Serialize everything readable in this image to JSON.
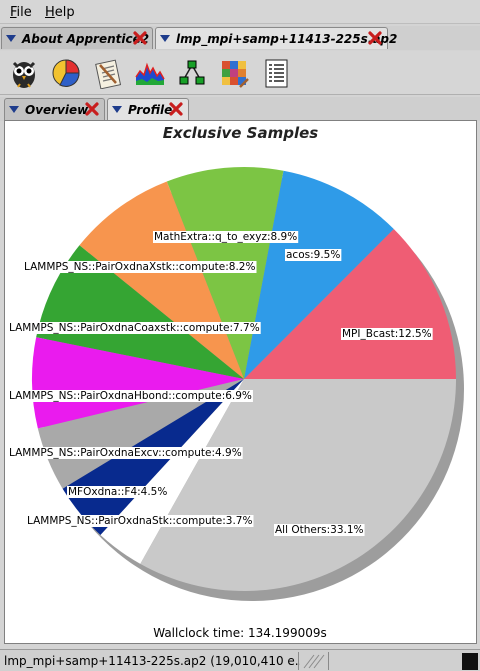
{
  "menu": {
    "file": "File",
    "file_mnemonic": "F",
    "file_rest": "ile",
    "help": "Help",
    "help_mnemonic": "H",
    "help_rest": "elp"
  },
  "app_tabs": [
    {
      "label": "About Apprentice2"
    },
    {
      "label": "lmp_mpi+samp+11413-225s.ap2"
    }
  ],
  "toolbar": {
    "icons": [
      "owl-icon",
      "pie-chart-icon",
      "clipboard-icon",
      "histogram-icon",
      "tree-icon",
      "heatmap-icon",
      "report-icon"
    ]
  },
  "view_tabs": [
    {
      "label": "Overview"
    },
    {
      "label": "Profile"
    }
  ],
  "chart_data": {
    "type": "pie",
    "title": "Exclusive Samples",
    "slices": [
      {
        "label": "MPI_Bcast:12.5%",
        "value": 12.5,
        "color": "#ef5d74"
      },
      {
        "label": "acos:9.5%",
        "value": 9.5,
        "color": "#2f9be8"
      },
      {
        "label": "MathExtra::q_to_exyz:8.9%",
        "value": 8.9,
        "color": "#7cc544"
      },
      {
        "label": "LAMMPS_NS::PairOxdnaXstk::compute:8.2%",
        "value": 8.2,
        "color": "#f7954e"
      },
      {
        "label": "LAMMPS_NS::PairOxdnaCoaxstk::compute:7.7%",
        "value": 7.7,
        "color": "#35a533"
      },
      {
        "label": "LAMMPS_NS::PairOxdnaHbond::compute:6.9%",
        "value": 6.9,
        "color": "#ea1bee"
      },
      {
        "label": "LAMMPS_NS::PairOxdnaExcv::compute:4.9%",
        "value": 4.9,
        "color": "#a9a9a9"
      },
      {
        "label": "MFOxdna::F4:4.5%",
        "value": 4.5,
        "color": "#082a8e"
      },
      {
        "label": "LAMMPS_NS::PairOxdnaStk::compute:3.7%",
        "value": 3.7,
        "color": "#ffffff"
      },
      {
        "label": "All Others:33.1%",
        "value": 33.1,
        "color": "#c9c9c9"
      }
    ]
  },
  "wallclock": "Wallclock time: 134.199009s",
  "status": {
    "text": "lmp_mpi+samp+11413-225s.ap2 (19,010,410 e..."
  }
}
